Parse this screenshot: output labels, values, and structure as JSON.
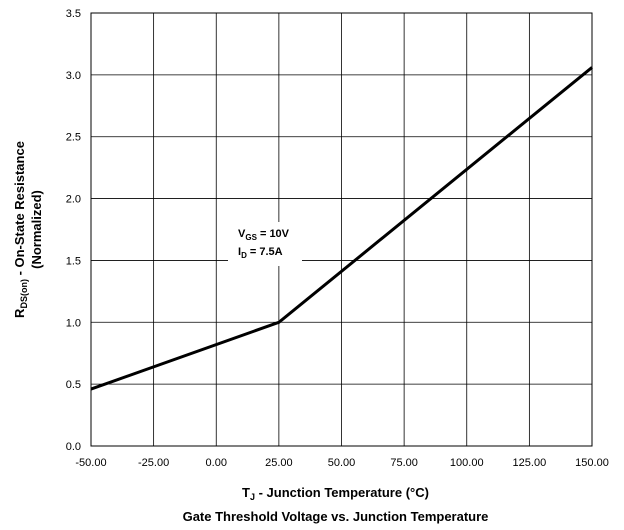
{
  "chart_data": {
    "type": "line",
    "title": "Gate Threshold Voltage vs. Junction Temperature",
    "xlabel": {
      "main": "T",
      "sub": "J",
      "rest": " - Junction Temperature (°C)"
    },
    "ylabel": {
      "main": "R",
      "sub": "DS(on)",
      "rest": " - On-State Resistance",
      "line2": "(Normalized)"
    },
    "xlim": [
      -50,
      150
    ],
    "ylim": [
      0,
      3.5
    ],
    "x_ticks": [
      -50,
      -25,
      0,
      25,
      50,
      75,
      100,
      125,
      150
    ],
    "x_tick_labels": [
      "-50.00",
      "-25.00",
      "0.00",
      "25.00",
      "50.00",
      "75.00",
      "100.00",
      "125.00",
      "150.00"
    ],
    "y_ticks": [
      0,
      0.5,
      1,
      1.5,
      2,
      2.5,
      3,
      3.5
    ],
    "y_tick_labels": [
      "0.0",
      "0.5",
      "1.0",
      "1.5",
      "2.0",
      "2.5",
      "3.0",
      "3.5"
    ],
    "grid": true,
    "series": [
      {
        "x": [
          -50,
          25,
          150
        ],
        "y": [
          0.46,
          1.0,
          3.06
        ],
        "color": "#000000"
      }
    ],
    "annotation": {
      "line1": {
        "main": "V",
        "sub": "GS",
        "rest": " = 10V"
      },
      "line2": {
        "main": "I",
        "sub": "D",
        "rest": " = 7.5A"
      }
    }
  }
}
